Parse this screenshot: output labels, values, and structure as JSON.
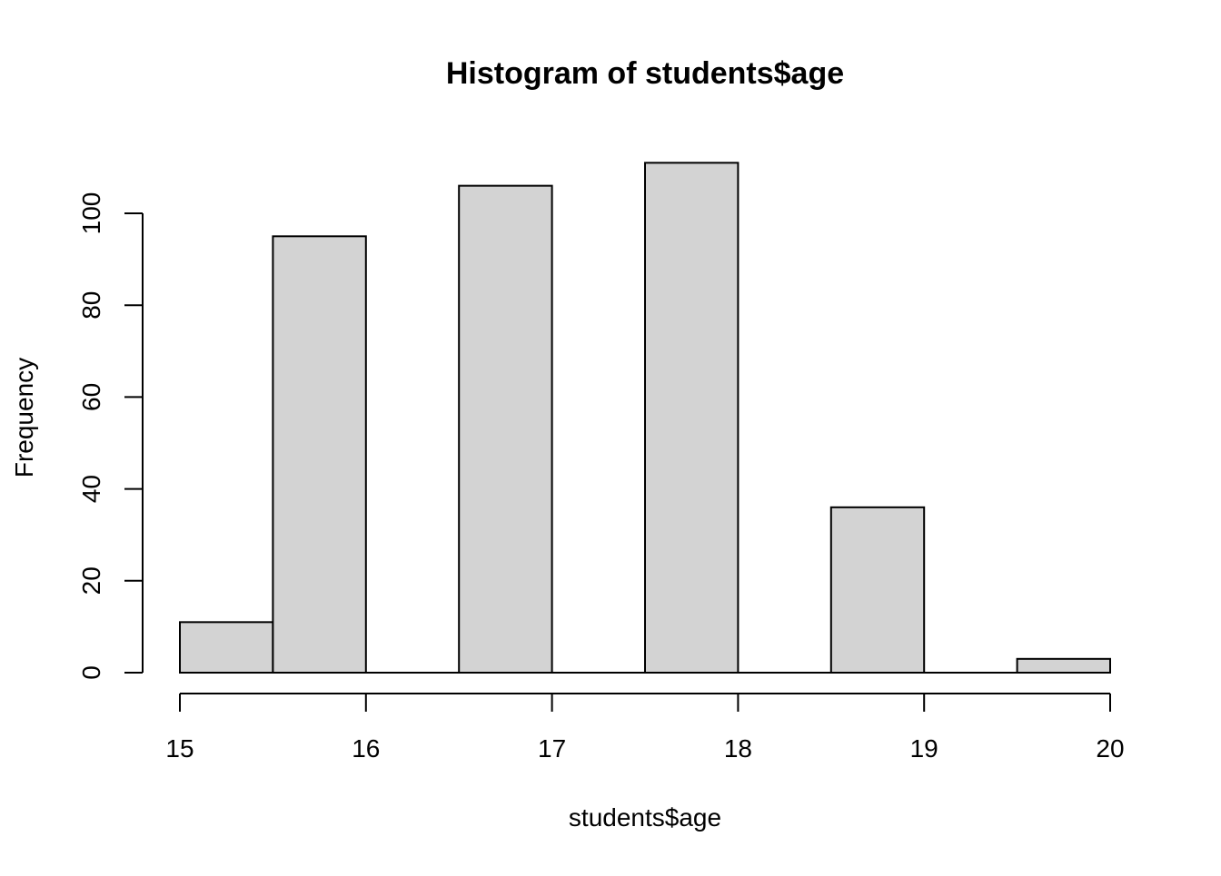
{
  "chart_data": {
    "type": "bar",
    "title": "Histogram of students$age",
    "xlabel": "students$age",
    "ylabel": "Frequency",
    "bins": [
      {
        "start": 15.0,
        "end": 15.5,
        "count": 11
      },
      {
        "start": 15.5,
        "end": 16.0,
        "count": 95
      },
      {
        "start": 16.0,
        "end": 16.5,
        "count": 0
      },
      {
        "start": 16.5,
        "end": 17.0,
        "count": 106
      },
      {
        "start": 17.0,
        "end": 17.5,
        "count": 0
      },
      {
        "start": 17.5,
        "end": 18.0,
        "count": 111
      },
      {
        "start": 18.0,
        "end": 18.5,
        "count": 0
      },
      {
        "start": 18.5,
        "end": 19.0,
        "count": 36
      },
      {
        "start": 19.0,
        "end": 19.5,
        "count": 0
      },
      {
        "start": 19.5,
        "end": 20.0,
        "count": 3
      }
    ],
    "xlim": [
      15,
      20
    ],
    "ylim": [
      0,
      111
    ],
    "x_ticks": [
      "15",
      "16",
      "17",
      "18",
      "19",
      "20"
    ],
    "y_ticks": [
      "0",
      "20",
      "40",
      "60",
      "80",
      "100"
    ],
    "grid": false,
    "legend": "none",
    "colors": {
      "bar_fill": "#d3d3d3",
      "bar_stroke": "#000000",
      "axis": "#000000",
      "background": "#ffffff"
    }
  }
}
